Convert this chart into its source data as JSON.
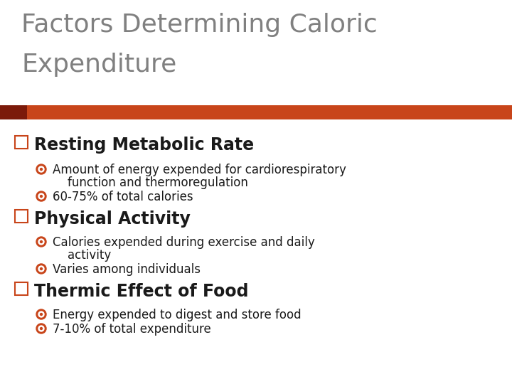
{
  "title_line1": "Factors Determining Caloric",
  "title_line2": "Expenditure",
  "title_color": "#808080",
  "title_fontsize": 26,
  "accent_bar_color": "#C8451A",
  "accent_bar_left_color": "#7B1A0A",
  "background_color": "#FFFFFF",
  "bullet_color": "#C8451A",
  "bullet1_header": "Resting Metabolic Rate",
  "bullet1_sub1a": "Amount of energy expended for cardiorespiratory",
  "bullet1_sub1b": "    function and thermoregulation",
  "bullet1_sub2": "60-75% of total calories",
  "bullet2_header": "Physical Activity",
  "bullet2_sub1a": "Calories expended during exercise and daily",
  "bullet2_sub1b": "    activity",
  "bullet2_sub2": "Varies among individuals",
  "bullet3_header": "Thermic Effect of Food",
  "bullet3_sub1": "Energy expended to digest and store food",
  "bullet3_sub2": "7-10% of total expenditure",
  "header_fontsize": 17,
  "sub_fontsize": 12,
  "text_color": "#1a1a1a"
}
